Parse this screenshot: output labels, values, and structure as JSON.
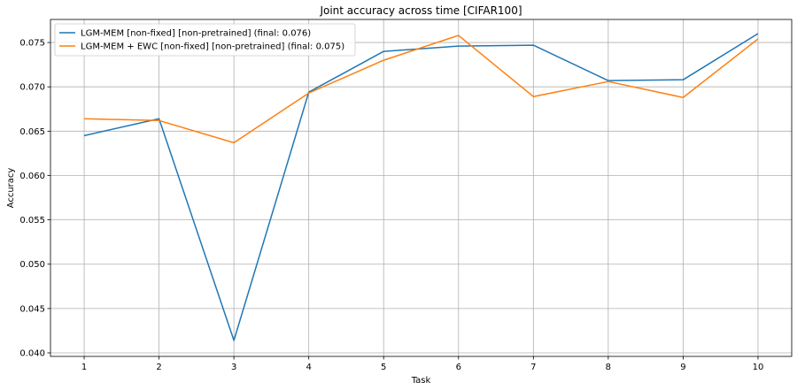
{
  "chart_data": {
    "type": "line",
    "title": "Joint accuracy across time [CIFAR100]",
    "xlabel": "Task",
    "ylabel": "Accuracy",
    "x": [
      1,
      2,
      3,
      4,
      5,
      6,
      7,
      8,
      9,
      10
    ],
    "xlim": [
      0.55,
      10.45
    ],
    "ylim": [
      0.0396,
      0.0776
    ],
    "yticks": [
      0.04,
      0.045,
      0.05,
      0.055,
      0.06,
      0.065,
      0.07,
      0.075
    ],
    "ytick_labels": [
      "0.040",
      "0.045",
      "0.050",
      "0.055",
      "0.060",
      "0.065",
      "0.070",
      "0.075"
    ],
    "xticks": [
      1,
      2,
      3,
      4,
      5,
      6,
      7,
      8,
      9,
      10
    ],
    "xtick_labels": [
      "1",
      "2",
      "3",
      "4",
      "5",
      "6",
      "7",
      "8",
      "9",
      "10"
    ],
    "grid": true,
    "legend_position": "top-left",
    "series": [
      {
        "name": "LGM-MEM [non-fixed] [non-pretrained] (final:  0.076)",
        "color": "#1f77b4",
        "values": [
          0.0645,
          0.0664,
          0.0414,
          0.0694,
          0.074,
          0.0746,
          0.0747,
          0.0707,
          0.0708,
          0.076
        ]
      },
      {
        "name": "LGM-MEM + EWC [non-fixed] [non-pretrained] (final:  0.075)",
        "color": "#ff7f0e",
        "values": [
          0.0664,
          0.0662,
          0.0637,
          0.0693,
          0.073,
          0.0758,
          0.0689,
          0.0706,
          0.0688,
          0.0754
        ]
      }
    ]
  }
}
